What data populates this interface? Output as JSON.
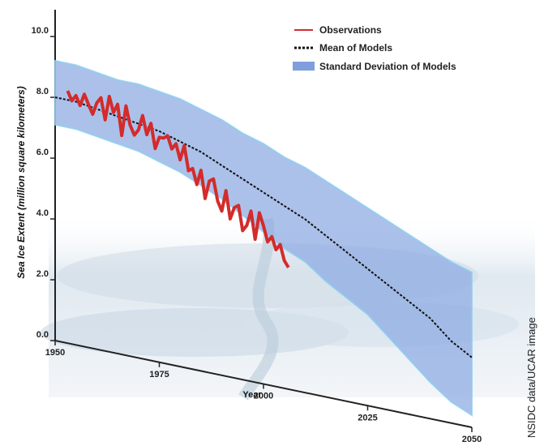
{
  "chart_data": {
    "type": "line",
    "title": "",
    "ylabel": "Sea Ice Extent (million square kilometers)",
    "xlabel": "Year",
    "ylim": [
      0,
      10
    ],
    "xlim": [
      1950,
      2050
    ],
    "y_ticks": [
      "0.0",
      "2.0",
      "4.0",
      "6.0",
      "8.0",
      "10.0"
    ],
    "x_ticks": [
      "1950",
      "1975",
      "2000",
      "2025",
      "2050"
    ],
    "legend": {
      "placement": "top-right",
      "entries": [
        "Observations",
        "Mean of Models",
        "Standard Deviation of Models"
      ]
    },
    "series": [
      {
        "name": "Observations",
        "x": [
          1953,
          1954,
          1955,
          1956,
          1957,
          1958,
          1959,
          1960,
          1961,
          1962,
          1963,
          1964,
          1965,
          1966,
          1967,
          1968,
          1969,
          1970,
          1971,
          1972,
          1973,
          1974,
          1975,
          1976,
          1977,
          1978,
          1979,
          1980,
          1981,
          1982,
          1983,
          1984,
          1985,
          1986,
          1987,
          1988,
          1989,
          1990,
          1991,
          1992,
          1993,
          1994,
          1995,
          1996,
          1997,
          1998,
          1999,
          2000,
          2001,
          2002,
          2003,
          2004,
          2005,
          2006
        ],
        "values": [
          8.3,
          8.0,
          8.2,
          7.9,
          8.3,
          8.0,
          7.7,
          8.1,
          8.3,
          7.6,
          8.4,
          7.9,
          8.2,
          7.2,
          8.2,
          7.6,
          7.3,
          7.5,
          8.0,
          7.4,
          7.8,
          7.0,
          7.4,
          7.4,
          7.5,
          7.1,
          7.3,
          6.8,
          7.3,
          6.5,
          6.6,
          6.1,
          6.6,
          5.7,
          6.3,
          6.4,
          5.7,
          5.4,
          6.1,
          5.2,
          5.6,
          5.7,
          4.9,
          5.1,
          5.6,
          4.7,
          5.6,
          5.2,
          4.7,
          4.9,
          4.5,
          4.7,
          4.2,
          4.0
        ]
      },
      {
        "name": "Mean of Models",
        "x": [
          1950,
          1955,
          1960,
          1965,
          1970,
          1975,
          1980,
          1985,
          1990,
          1995,
          2000,
          2005,
          2010,
          2015,
          2020,
          2025,
          2030,
          2035,
          2040,
          2045,
          2050
        ],
        "values": [
          8.0,
          8.0,
          7.9,
          7.8,
          7.7,
          7.6,
          7.4,
          7.2,
          6.9,
          6.6,
          6.3,
          6.0,
          5.7,
          5.3,
          4.9,
          4.5,
          4.1,
          3.7,
          3.3,
          2.7,
          2.3
        ]
      },
      {
        "name": "Standard Deviation of Models",
        "x": [
          1950,
          1955,
          1960,
          1965,
          1970,
          1975,
          1980,
          1985,
          1990,
          1995,
          2000,
          2005,
          2010,
          2015,
          2020,
          2025,
          2030,
          2035,
          2040,
          2045,
          2050
        ],
        "upper": [
          9.2,
          9.2,
          9.1,
          9.0,
          9.0,
          8.9,
          8.8,
          8.6,
          8.4,
          8.1,
          7.9,
          7.6,
          7.4,
          7.1,
          6.8,
          6.5,
          6.2,
          5.9,
          5.6,
          5.3,
          5.1
        ],
        "lower": [
          7.1,
          7.1,
          7.0,
          6.9,
          6.8,
          6.6,
          6.4,
          6.1,
          5.8,
          5.4,
          5.0,
          4.6,
          4.3,
          3.8,
          3.4,
          3.0,
          2.4,
          1.8,
          1.2,
          0.7,
          0.4
        ]
      }
    ]
  },
  "credit": "NSIDC data/UCAR image"
}
